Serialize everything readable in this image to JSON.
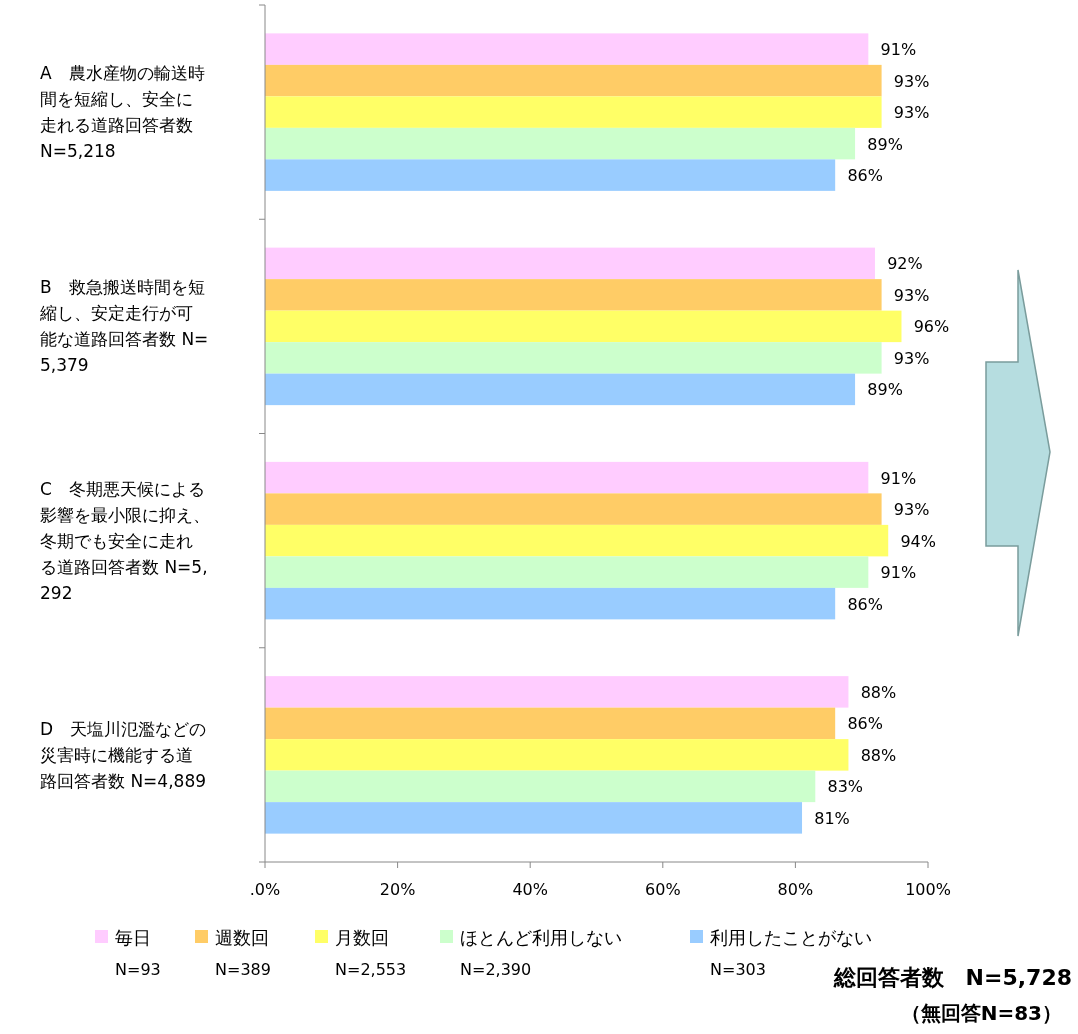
{
  "chart_data": {
    "type": "bar",
    "orientation": "horizontal",
    "categories": [
      "A　農水産物の輸送時間を短縮し、安全に走れる道路回答者数 N=5,218",
      "B　救急搬送時間を短縮し、安定走行が可能な道路回答者数 N=5,379",
      "C　冬期悪天候による影響を最小限に抑え、冬期でも安全に走れる道路回答者数 N=5,292",
      "D　天塩川氾濫などの災害時に機能する道路回答者数 N=4,889"
    ],
    "series": [
      {
        "name": "毎日\nN=93",
        "color": "#ffccff",
        "values": [
          91,
          92,
          91,
          88
        ],
        "value_labels": [
          "91%",
          "92%",
          "91%",
          "88%"
        ]
      },
      {
        "name": "週数回\nN=389",
        "color": "#ffcc66",
        "values": [
          93,
          93,
          93,
          86
        ],
        "value_labels": [
          "93%",
          "93%",
          "93%",
          "86%"
        ]
      },
      {
        "name": "月数回\nN=2,553",
        "color": "#ffff66",
        "values": [
          93,
          96,
          94,
          88
        ],
        "value_labels": [
          "93%",
          "96%",
          "94%",
          "88%"
        ]
      },
      {
        "name": "ほとんど利用しない\nN=2,390",
        "color": "#ccffcc",
        "values": [
          89,
          93,
          91,
          83
        ],
        "value_labels": [
          "89%",
          "93%",
          "91%",
          "83%"
        ]
      },
      {
        "name": "利用したことがない\nN=303",
        "color": "#99ccff",
        "values": [
          86,
          89,
          86,
          81
        ],
        "value_labels": [
          "86%",
          "89%",
          "86%",
          "81%"
        ]
      }
    ],
    "xlim": [
      0,
      100
    ],
    "xticks": [
      {
        "value": 0,
        "label": ".0%"
      },
      {
        "value": 20,
        "label": "20%"
      },
      {
        "value": 40,
        "label": "40%"
      },
      {
        "value": 60,
        "label": "60%"
      },
      {
        "value": 80,
        "label": "80%"
      },
      {
        "value": 100,
        "label": "100%"
      }
    ],
    "grid": false,
    "legend": "bottom",
    "annotations": [
      "総回答者数　N=5,728",
      "（無回答N=83）"
    ]
  }
}
